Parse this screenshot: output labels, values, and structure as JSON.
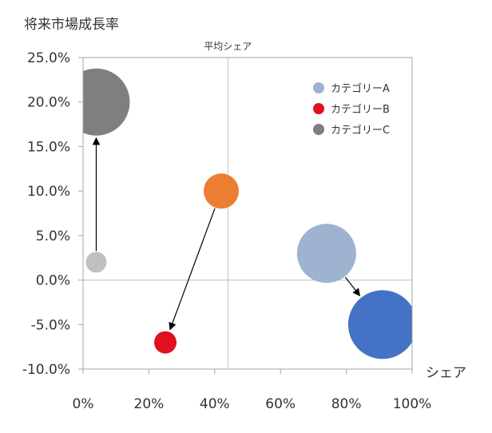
{
  "chart_data": {
    "type": "bubble",
    "ylabel": "将来市場成長率",
    "xlabel": "シェア",
    "reference_line_label": "平均シェア",
    "reference_x": 0.44,
    "reference_y": 0.0,
    "xlim": [
      0,
      1
    ],
    "ylim": [
      -0.1,
      0.25
    ],
    "x_ticks": [
      0,
      0.2,
      0.4,
      0.6,
      0.8,
      1.0
    ],
    "x_tick_labels": [
      "0%",
      "20%",
      "40%",
      "60%",
      "80%",
      "100%"
    ],
    "y_ticks": [
      -0.1,
      -0.05,
      0.0,
      0.05,
      0.1,
      0.15,
      0.2,
      0.25
    ],
    "y_tick_labels": [
      "-10.0%",
      "-5.0%",
      "0.0%",
      "5.0%",
      "10.0%",
      "15.0%",
      "20.0%",
      "25.0%"
    ],
    "legend": {
      "position": "top-right",
      "entries": [
        {
          "name": "カテゴリーA",
          "color": "#9eb3cf"
        },
        {
          "name": "カテゴリーB",
          "color": "#e0101e"
        },
        {
          "name": "カテゴリーC",
          "color": "#7f7f7f"
        }
      ]
    },
    "bubbles": [
      {
        "id": "a-before",
        "x": 0.74,
        "y": 0.03,
        "size": 37,
        "color": "#9eb3cf"
      },
      {
        "id": "a-after",
        "x": 0.91,
        "y": -0.05,
        "size": 43,
        "color": "#4472c4"
      },
      {
        "id": "b-before",
        "x": 0.42,
        "y": 0.1,
        "size": 22,
        "color": "#ed7d31"
      },
      {
        "id": "b-after",
        "x": 0.25,
        "y": -0.07,
        "size": 14,
        "color": "#e0101e"
      },
      {
        "id": "c-before",
        "x": 0.04,
        "y": 0.02,
        "size": 13,
        "color": "#c0c0c0"
      },
      {
        "id": "c-after",
        "x": 0.04,
        "y": 0.2,
        "size": 42,
        "color": "#7f7f7f"
      }
    ],
    "arrows": [
      {
        "from": "c-before",
        "to": "c-after"
      },
      {
        "from": "b-before",
        "to": "b-after"
      },
      {
        "from": "a-before",
        "to": "a-after"
      }
    ]
  }
}
